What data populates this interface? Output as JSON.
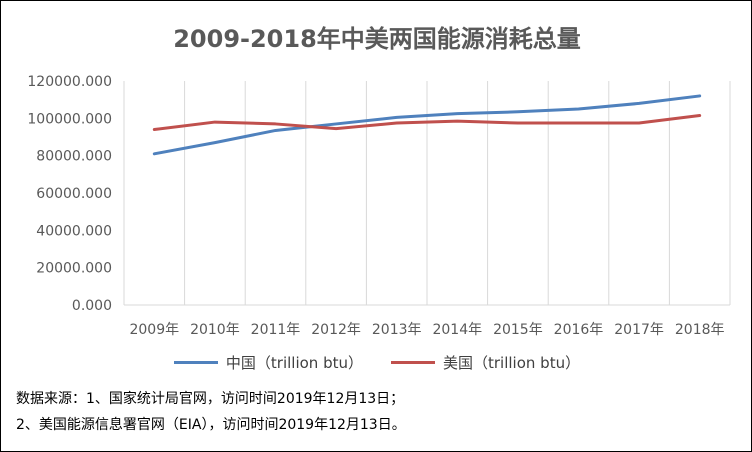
{
  "chart_data": {
    "type": "line",
    "title": "2009-2018年中美两国能源消耗总量",
    "categories": [
      "2009年",
      "2010年",
      "2011年",
      "2012年",
      "2013年",
      "2014年",
      "2015年",
      "2016年",
      "2017年",
      "2018年"
    ],
    "y_ticks": [
      "0.000",
      "20000.000",
      "40000.000",
      "60000.000",
      "80000.000",
      "100000.000",
      "120000.000"
    ],
    "ylim": [
      0,
      120000
    ],
    "grid": "vertical",
    "legend_position": "bottom",
    "series": [
      {
        "name": "中国（trillion btu）",
        "color": "#4F81BD",
        "values": [
          81000,
          87000,
          93500,
          97000,
          100500,
          102500,
          103500,
          105000,
          108000,
          112000
        ]
      },
      {
        "name": "美国（trillion btu）",
        "color": "#C0504D",
        "values": [
          94000,
          98000,
          97000,
          94500,
          97500,
          98500,
          97500,
          97500,
          97500,
          101500
        ]
      }
    ]
  },
  "source": {
    "line1": "数据来源：1、国家统计局官网，访问时间2019年12月13日；",
    "line2": "2、美国能源信息署官网（EIA），访问时间2019年12月13日。"
  }
}
